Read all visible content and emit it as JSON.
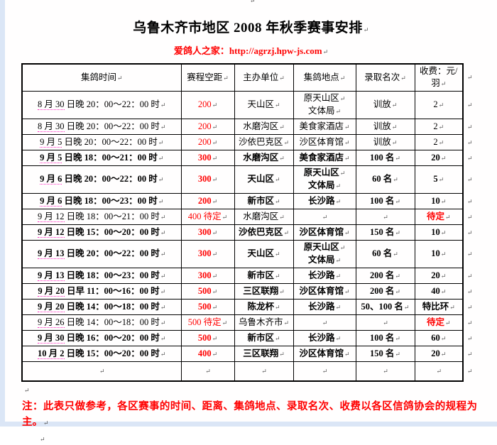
{
  "page": {
    "title": "乌鲁木齐市地区 2008 年秋季赛事安排",
    "subtitle_label": "爱鸽人之家：",
    "subtitle_url": "http://agrzj.hpw-js.com",
    "note": "注：此表只做参考，各区赛事的时间、距离、集鸽地点、录取名次、收费以各区信鸽协会的规程为主。",
    "pilcrow": "↵"
  },
  "colors": {
    "accent_red": "#ff0000",
    "page_margin_blue": "#dbe6f6",
    "spellcheck_magenta": "#ff2ec4",
    "border_black": "#000000"
  },
  "table": {
    "headers": [
      "集鸽时间",
      "赛程空距",
      "主办单位",
      "集鸽地点",
      "录取名次",
      "收费：元/羽"
    ],
    "col_keys": [
      "time",
      "distance",
      "organizer",
      "location",
      "prizes",
      "fee"
    ],
    "rows": [
      {
        "date": "8 月 30",
        "time": " 日晚 20：00～22：00 时",
        "dist": "200",
        "host": "天山区",
        "place": [
          "原天山区",
          "文体局"
        ],
        "prize": "训放",
        "fee": "2",
        "bold": false,
        "fee_red": false
      },
      {
        "date": "8 月 30",
        "time": " 日晚 20：00～22：00 时",
        "dist": "200",
        "host": "水磨沟区",
        "place": [
          "美食家酒店"
        ],
        "prize": "训放",
        "fee": "2",
        "bold": false,
        "fee_red": false
      },
      {
        "date": "9 月 5",
        "time": " 日晚 20：00～22：00 时",
        "dist": "200",
        "host": "沙依巴克区",
        "place": [
          "沙区体育馆"
        ],
        "prize": "训放",
        "fee": "2",
        "bold": false,
        "fee_red": false
      },
      {
        "date": "9 月 5",
        "time": " 日晚 18：00～21：00 时",
        "dist": "300",
        "host": "水磨沟区",
        "place": [
          "美食家酒店"
        ],
        "prize": "100 名",
        "fee": "20",
        "bold": true,
        "fee_red": false
      },
      {
        "date": "9 月 6",
        "time": " 日晚 20：00～22：00 时",
        "dist": "300",
        "host": "天山区",
        "place": [
          "原天山区",
          "文体局"
        ],
        "prize": "60 名",
        "fee": "5",
        "bold": true,
        "fee_red": false
      },
      {
        "date": "9 月 6",
        "time": " 日晚 18：00～23：00 时",
        "dist": "200",
        "host": "新市区",
        "place": [
          "长沙路"
        ],
        "prize": "100 名",
        "fee": "10",
        "bold": true,
        "fee_red": false
      },
      {
        "date": "9 月 12",
        "time": " 日晚 18：00～21：00 时",
        "dist": "400 待定",
        "host": "水磨沟区",
        "place": [],
        "prize": "",
        "fee": "待定",
        "bold": false,
        "fee_red": true
      },
      {
        "date": "9 月 12",
        "time": " 日晚 15：00～20：00 时",
        "dist": "300",
        "host": "沙依巴克区",
        "place": [
          "沙区体育馆"
        ],
        "prize": "150 名",
        "fee": "10",
        "bold": true,
        "fee_red": false
      },
      {
        "date": "9 月 13",
        "time": " 日晚 20：00～22：00 时",
        "dist": "300",
        "host": "天山区",
        "place": [
          "原天山区",
          "文体局"
        ],
        "prize": "60 名",
        "fee": "10",
        "bold": true,
        "fee_red": false
      },
      {
        "date": "9 月 13",
        "time": " 日晚 18：00～23：00 时",
        "dist": "300",
        "host": "新市区",
        "place": [
          "长沙路"
        ],
        "prize": "200 名",
        "fee": "20",
        "bold": true,
        "fee_red": false
      },
      {
        "date": "9 月 20",
        "time": " 日早 11：00～16：00 时",
        "dist": "500",
        "host": "三区联翔",
        "place": [
          "沙区体育馆"
        ],
        "prize": "200 名",
        "fee": "40",
        "bold": true,
        "fee_red": false
      },
      {
        "date": "9 月 20",
        "time": " 日晚 14：00～18：00 时",
        "dist": "500",
        "host": "陈龙杯",
        "place": [
          "长沙路"
        ],
        "prize": "50、100 名",
        "fee": "特比环",
        "bold": true,
        "fee_red": false
      },
      {
        "date": "9 月 26",
        "time": " 日晚 14：00～18：00 时",
        "dist": "500 待定",
        "host": "乌鲁木齐市",
        "place": [],
        "prize": "",
        "fee": "待定",
        "bold": false,
        "fee_red": true
      },
      {
        "date": "9 月 30",
        "time": " 日晚 16：00～20：00 时",
        "dist": "500",
        "host": "新市区",
        "place": [
          "长沙路"
        ],
        "prize": "100 名",
        "fee": "60",
        "bold": true,
        "fee_red": false
      },
      {
        "date": "10 月 2",
        "time": " 日晚 15：00～20：00 时",
        "dist": "400",
        "host": "三区联翔",
        "place": [
          "沙区体育馆"
        ],
        "prize": "150 名",
        "fee": "20",
        "bold": true,
        "fee_red": false
      },
      {
        "date": "",
        "time": "",
        "dist": "",
        "host": "",
        "place": [],
        "prize": "",
        "fee": "",
        "bold": false,
        "fee_red": false,
        "empty": true
      }
    ]
  }
}
